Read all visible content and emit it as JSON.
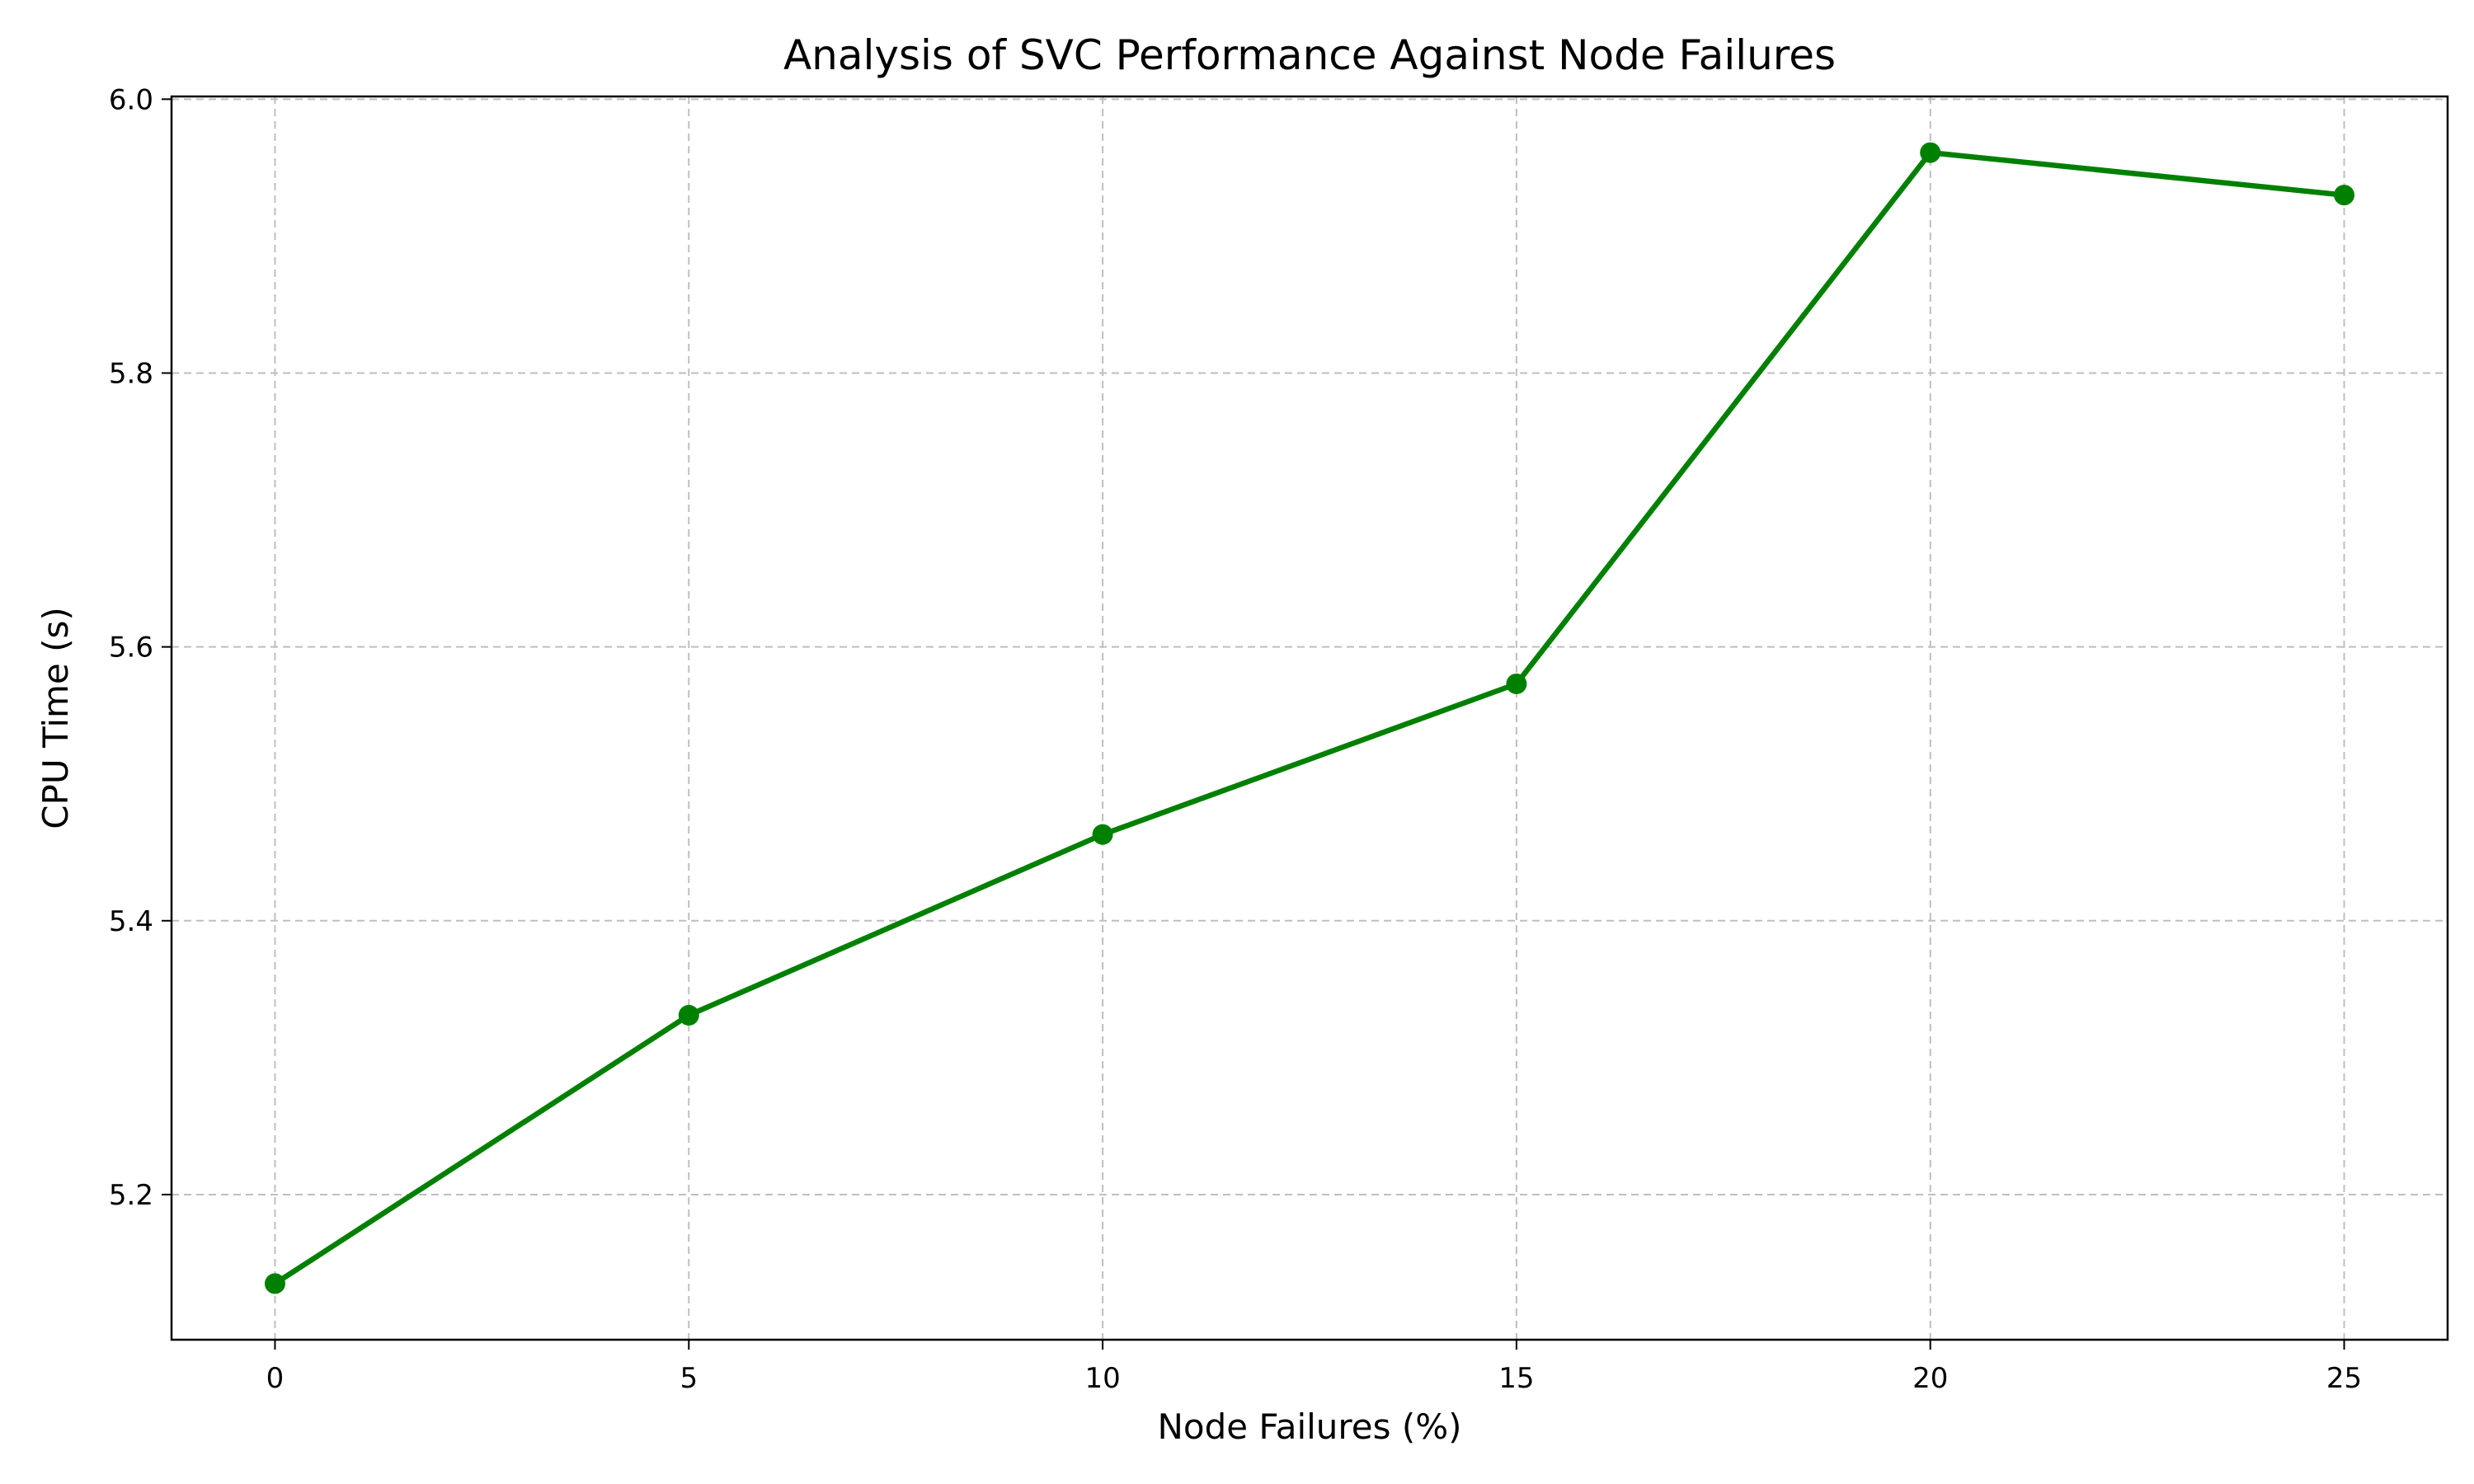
{
  "chart_data": {
    "type": "line",
    "title": "Analysis of SVC Performance Against Node Failures",
    "xlabel": "Node Failures (%)",
    "ylabel": "CPU Time (s)",
    "x": [
      0,
      5,
      10,
      15,
      20,
      25
    ],
    "series": [
      {
        "values": [
          5.135,
          5.331,
          5.463,
          5.573,
          5.961,
          5.93
        ],
        "color": "#008000",
        "marker": "circle"
      }
    ],
    "xticks": [
      "0",
      "5",
      "10",
      "15",
      "20",
      "25"
    ],
    "yticks": [
      "5.2",
      "5.4",
      "5.6",
      "5.8",
      "6.0"
    ],
    "xlim": [
      -1.25,
      26.25
    ],
    "ylim": [
      5.094,
      6.002
    ],
    "grid": true,
    "grid_style": "dashed",
    "grid_color": "#bfbfbf",
    "legend": "none"
  }
}
